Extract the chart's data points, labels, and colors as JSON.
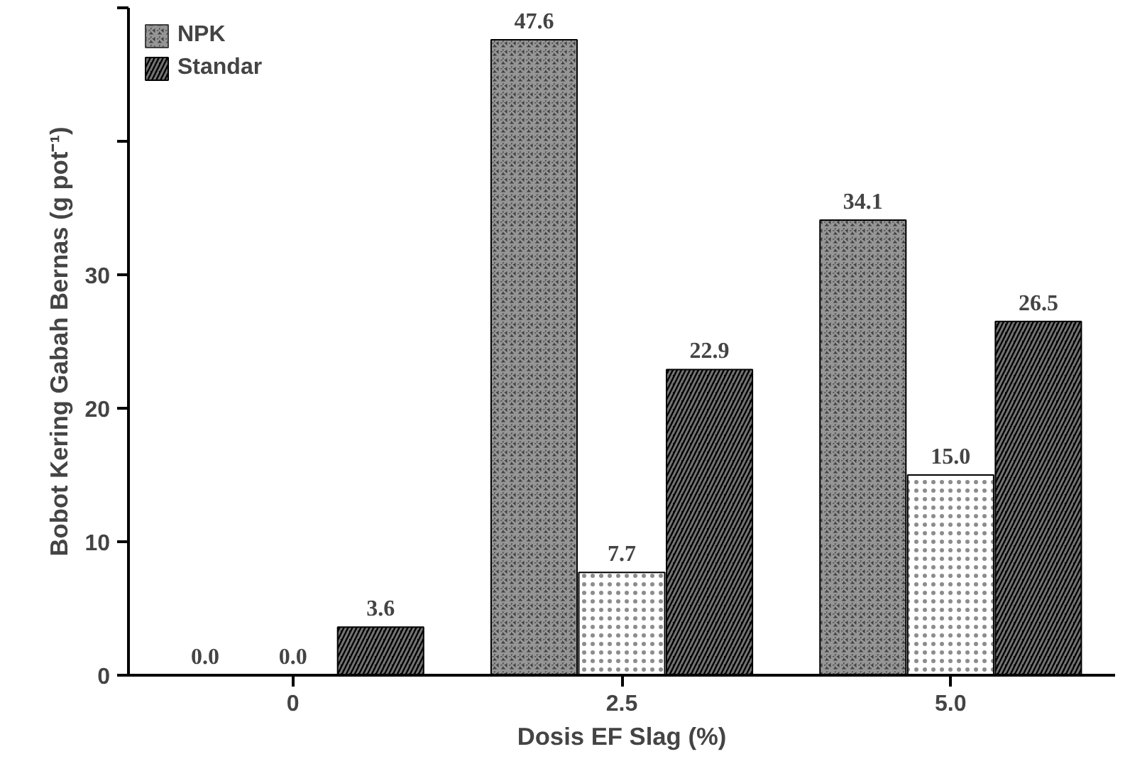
{
  "chart_data": {
    "type": "bar",
    "xlabel": "Dosis EF Slag (%)",
    "ylabel": "Bobot Kering Gabah Bernas (g pot⁻¹)",
    "categories": [
      "0",
      "2.5",
      "5.0"
    ],
    "series": [
      {
        "name": "NPK",
        "color": "#404040",
        "values": [
          0.0,
          47.6,
          34.1
        ],
        "value_labels": [
          "0.0",
          "47.6",
          "34.1"
        ]
      },
      {
        "color": "#ffffff",
        "values": [
          0.0,
          7.7,
          15.0
        ],
        "value_labels": [
          "0.0",
          "7.7",
          "15.0"
        ]
      },
      {
        "name": "Standar",
        "color": "#000000",
        "values": [
          3.6,
          22.9,
          26.5
        ],
        "value_labels": [
          "3.6",
          "22.9",
          "26.5"
        ]
      }
    ],
    "ylim": [
      0,
      50
    ],
    "yticks": [
      0,
      10,
      20,
      30,
      {
        "value": 40,
        "label": null
      },
      {
        "value": 50,
        "label": null
      }
    ],
    "grid": false,
    "legend": "top left"
  }
}
